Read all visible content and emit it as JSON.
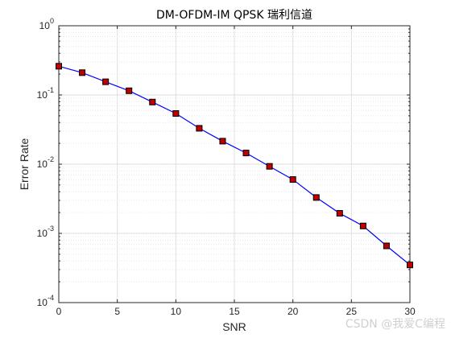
{
  "chart_data": {
    "type": "line",
    "title": "DM-OFDM-IM QPSK 瑞利信道",
    "xlabel": "SNR",
    "ylabel": "Error Rate",
    "xlim": [
      0,
      30
    ],
    "ylim": [
      0.0001,
      1
    ],
    "yscale": "log",
    "grid": true,
    "x_ticks": [
      "0",
      "5",
      "10",
      "15",
      "20",
      "25",
      "30"
    ],
    "series": [
      {
        "x": [
          0,
          2,
          4,
          6,
          8,
          10,
          12,
          14,
          16,
          18,
          20,
          22,
          24,
          26,
          28,
          30
        ],
        "values": [
          0.26,
          0.21,
          0.155,
          0.115,
          0.079,
          0.054,
          0.033,
          0.0215,
          0.0145,
          0.0093,
          0.006,
          0.0033,
          0.00195,
          0.00128,
          0.00066,
          0.00035
        ],
        "line_color": "#0000ff",
        "marker": "square",
        "marker_color": "#c00000"
      }
    ]
  },
  "watermark": "CSDN @我爱C编程"
}
